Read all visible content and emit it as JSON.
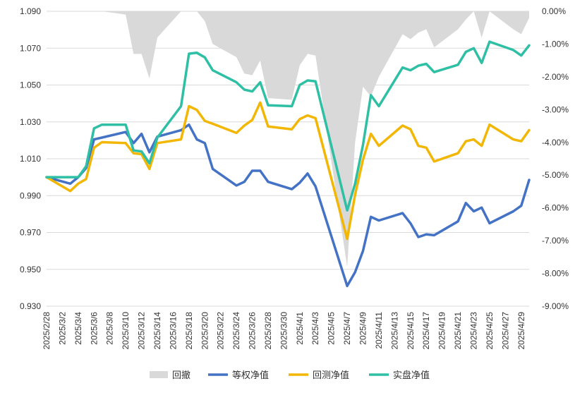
{
  "chart_data": {
    "type": "line",
    "x": [
      "2025/2/28",
      "2025/3/3",
      "2025/3/4",
      "2025/3/5",
      "2025/3/6",
      "2025/3/7",
      "2025/3/10",
      "2025/3/11",
      "2025/3/12",
      "2025/3/13",
      "2025/3/14",
      "2025/3/17",
      "2025/3/18",
      "2025/3/19",
      "2025/3/20",
      "2025/3/21",
      "2025/3/24",
      "2025/3/25",
      "2025/3/26",
      "2025/3/27",
      "2025/3/28",
      "2025/3/31",
      "2025/4/1",
      "2025/4/2",
      "2025/4/3",
      "2025/4/7",
      "2025/4/8",
      "2025/4/9",
      "2025/4/10",
      "2025/4/11",
      "2025/4/14",
      "2025/4/15",
      "2025/4/16",
      "2025/4/17",
      "2025/4/18",
      "2025/4/21",
      "2025/4/22",
      "2025/4/23",
      "2025/4/24",
      "2025/4/25",
      "2025/4/28",
      "2025/4/29",
      "2025/4/30"
    ],
    "x_tick_labels": [
      "2025/2/28",
      "2025/3/2",
      "2025/3/4",
      "2025/3/6",
      "2025/3/8",
      "2025/3/10",
      "2025/3/12",
      "2025/3/14",
      "2025/3/16",
      "2025/3/18",
      "2025/3/20",
      "2025/3/22",
      "2025/3/24",
      "2025/3/26",
      "2025/3/28",
      "2025/3/30",
      "2025/4/1",
      "2025/4/3",
      "2025/4/5",
      "2025/4/7",
      "2025/4/9",
      "2025/4/11",
      "2025/4/13",
      "2025/4/15",
      "2025/4/17",
      "2025/4/19",
      "2025/4/21",
      "2025/4/23",
      "2025/4/25",
      "2025/4/27",
      "2025/4/29"
    ],
    "y_left": {
      "ylim": [
        0.93,
        1.09
      ],
      "ticks": [
        "0.930",
        "0.950",
        "0.970",
        "0.990",
        "1.010",
        "1.030",
        "1.050",
        "1.070",
        "1.090"
      ]
    },
    "y_right": {
      "ylim": [
        -9.0,
        0.0
      ],
      "ticks": [
        "-9.00%",
        "-8.00%",
        "-7.00%",
        "-6.00%",
        "-5.00%",
        "-4.00%",
        "-3.00%",
        "-2.00%",
        "-1.00%",
        "0.00%"
      ]
    },
    "grid": "horizontal",
    "legend_position": "bottom",
    "series": [
      {
        "name": "回撤",
        "kind": "area",
        "axis": "right",
        "color": "#D9D9D9",
        "values": [
          0,
          0,
          0,
          0,
          0,
          0,
          -0.1,
          -1.3,
          -1.3,
          -2.05,
          -0.8,
          0,
          0,
          0,
          -0.3,
          -1.0,
          -1.4,
          -1.9,
          -1.95,
          -1.5,
          -2.65,
          -2.7,
          -1.65,
          -1.3,
          -1.35,
          -7.8,
          -4.0,
          -2.3,
          -2.6,
          -2.0,
          -0.7,
          -0.85,
          -0.65,
          -0.55,
          -1.1,
          -0.55,
          -0.25,
          0,
          -0.8,
          0,
          -0.55,
          -0.7,
          -0.2
        ]
      },
      {
        "name": "等权净值",
        "kind": "line",
        "axis": "left",
        "color": "#4472C4",
        "values": [
          1.0,
          0.9965,
          1.0,
          1.005,
          1.0205,
          1.0215,
          1.0245,
          1.0185,
          1.0235,
          1.0135,
          1.022,
          1.0255,
          1.0285,
          1.0205,
          1.0185,
          1.0045,
          0.9955,
          0.9975,
          1.0035,
          1.0035,
          0.9975,
          0.9935,
          0.997,
          1.002,
          0.995,
          0.941,
          0.9485,
          0.96,
          0.9785,
          0.9765,
          0.9805,
          0.975,
          0.9675,
          0.969,
          0.9685,
          0.976,
          0.986,
          0.9815,
          0.9835,
          0.975,
          0.9815,
          0.9845,
          0.9985
        ]
      },
      {
        "name": "回测净值",
        "kind": "line",
        "axis": "left",
        "color": "#F2B705",
        "values": [
          1.0,
          0.9925,
          0.9965,
          0.999,
          1.016,
          1.019,
          1.0185,
          1.013,
          1.0125,
          1.0045,
          1.0185,
          1.0205,
          1.0385,
          1.0365,
          1.0305,
          1.029,
          1.024,
          1.028,
          1.031,
          1.0405,
          1.0275,
          1.026,
          1.0315,
          1.0335,
          1.032,
          0.9665,
          0.9905,
          1.0095,
          1.0235,
          1.017,
          1.028,
          1.026,
          1.017,
          1.016,
          1.0085,
          1.013,
          1.0195,
          1.0205,
          1.017,
          1.0285,
          1.0205,
          1.0195,
          1.0255
        ]
      },
      {
        "name": "实盘净值",
        "kind": "line",
        "axis": "left",
        "color": "#2EBFA5",
        "values": [
          1.0,
          1.0,
          1.0,
          1.006,
          1.0265,
          1.0285,
          1.0285,
          1.0145,
          1.014,
          1.0075,
          1.0215,
          1.0385,
          1.067,
          1.0675,
          1.065,
          1.058,
          1.0515,
          1.0475,
          1.0465,
          1.0515,
          1.039,
          1.0385,
          1.05,
          1.0525,
          1.052,
          0.982,
          0.9965,
          1.0175,
          1.0445,
          1.0385,
          1.0595,
          1.058,
          1.0605,
          1.0615,
          1.057,
          1.061,
          1.068,
          1.07,
          1.062,
          1.0735,
          1.069,
          1.066,
          1.0715
        ]
      }
    ]
  }
}
